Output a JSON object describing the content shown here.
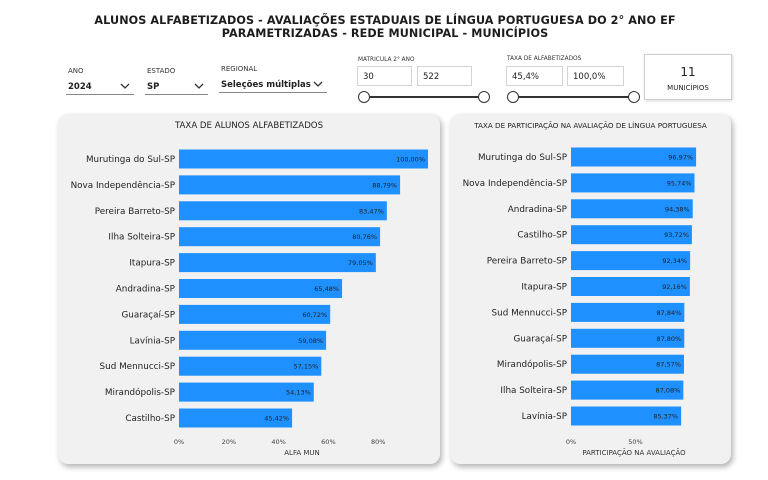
{
  "title": "ALUNOS ALFABETIZADOS -  AVALIAÇÕES ESTADUAIS DE LÍNGUA PORTUGUESA DO 2° ANO EF  PARAMETRIZADAS - REDE MUNICIPAL - MUNICÍPIOS",
  "filters": {
    "ano": {
      "label": "ANO",
      "value": "2024"
    },
    "estado": {
      "label": "ESTADO",
      "value": "SP"
    },
    "regional": {
      "label": "REGIONAL",
      "value": "Seleções múltiplas"
    },
    "matricula": {
      "label": "MATRICULA 2° ANO",
      "min": "30",
      "max": "522"
    },
    "taxa": {
      "label": "TAXA DE ALFABETIZADOS",
      "min": "45,4%",
      "max": "100,0%"
    },
    "chevron_icon": "chevron-down-icon"
  },
  "card": {
    "value": "11",
    "label": "MUNICÍPIOS"
  },
  "colors": {
    "bar": "#1e90ff",
    "panel": "#f1f1f1"
  },
  "chart_data": [
    {
      "type": "bar",
      "orientation": "horizontal",
      "title": "TAXA DE ALUNOS ALFABETIZADOS",
      "xlabel": "ALFA MUN",
      "categories": [
        "Murutinga do Sul-SP",
        "Nova Independência-SP",
        "Pereira Barreto-SP",
        "Ilha Solteira-SP",
        "Itapura-SP",
        "Andradina-SP",
        "Guaraçaí-SP",
        "Lavínia-SP",
        "Sud Mennucci-SP",
        "Mirandópolis-SP",
        "Castilho-SP"
      ],
      "values": [
        100.0,
        88.79,
        83.47,
        80.76,
        79.05,
        65.48,
        60.72,
        59.08,
        57.15,
        54.13,
        45.42
      ],
      "labels": [
        "100,00%",
        "88,79%",
        "83,47%",
        "80,76%",
        "79,05%",
        "65,48%",
        "60,72%",
        "59,08%",
        "57,15%",
        "54,13%",
        "45,42%"
      ],
      "xticks": [
        "0%",
        "20%",
        "40%",
        "60%",
        "80%"
      ],
      "xtick_values": [
        0,
        20,
        40,
        60,
        80
      ],
      "xlim": [
        0,
        100
      ]
    },
    {
      "type": "bar",
      "orientation": "horizontal",
      "title": "TAXA DE PARTICIPAÇÃO NA AVALIAÇÃO DE LÍNGUA PORTUGUESA",
      "xlabel": "PARTICIPAÇÃO NA AVALIAÇÃO",
      "categories": [
        "Murutinga do Sul-SP",
        "Nova Independência-SP",
        "Andradina-SP",
        "Castilho-SP",
        "Pereira Barreto-SP",
        "Itapura-SP",
        "Sud Mennucci-SP",
        "Guaraçaí-SP",
        "Mirandópolis-SP",
        "Ilha Solteira-SP",
        "Lavínia-SP"
      ],
      "values": [
        96.97,
        95.74,
        94.38,
        93.72,
        92.34,
        92.16,
        87.84,
        87.8,
        87.57,
        87.08,
        85.37
      ],
      "labels": [
        "96,97%",
        "95,74%",
        "94,38%",
        "93,72%",
        "92,34%",
        "92,16%",
        "87,84%",
        "87,80%",
        "87,57%",
        "87,08%",
        "85,37%"
      ],
      "xticks": [
        "0%",
        "50%"
      ],
      "xtick_values": [
        0,
        50
      ],
      "xlim": [
        0,
        100
      ]
    }
  ]
}
